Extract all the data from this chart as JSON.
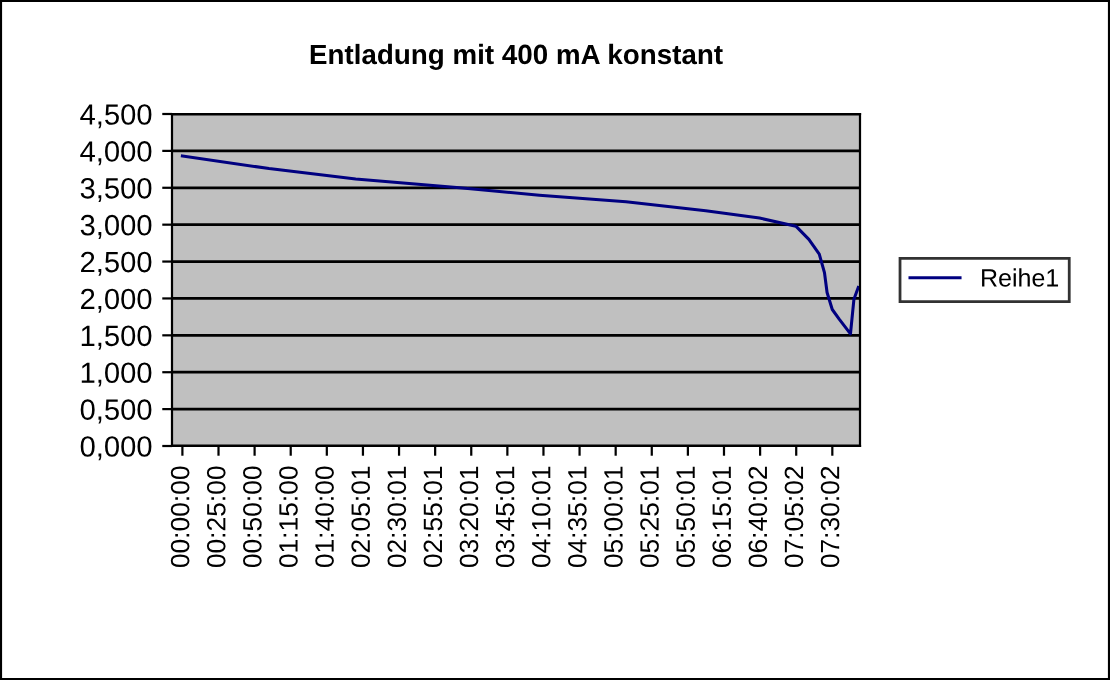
{
  "chart_data": {
    "type": "line",
    "title": "Entladung mit 400 mA konstant",
    "x": [
      0,
      1.0,
      2.0,
      3.2,
      4.12,
      5.12,
      6.04,
      6.66,
      7.08,
      7.23,
      7.35,
      7.41,
      7.44,
      7.5,
      7.58,
      7.71,
      7.75,
      7.8
    ],
    "series": [
      {
        "name": "Reihe1",
        "color": "#000080",
        "values": [
          3.93,
          3.76,
          3.62,
          3.5,
          3.4,
          3.31,
          3.19,
          3.09,
          2.98,
          2.8,
          2.6,
          2.35,
          2.08,
          1.85,
          1.72,
          1.52,
          1.99,
          2.15
        ]
      }
    ],
    "xlim": [
      -0.12,
      7.82
    ],
    "xticks": [
      {
        "value": 0,
        "label": "00:00:00"
      },
      {
        "value": 0.4167,
        "label": "00:25:00"
      },
      {
        "value": 0.8333,
        "label": "00:50:00"
      },
      {
        "value": 1.25,
        "label": "01:15:00"
      },
      {
        "value": 1.6667,
        "label": "01:40:00"
      },
      {
        "value": 2.0836,
        "label": "02:05:01"
      },
      {
        "value": 2.5003,
        "label": "02:30:01"
      },
      {
        "value": 2.9169,
        "label": "02:55:01"
      },
      {
        "value": 3.3336,
        "label": "03:20:01"
      },
      {
        "value": 3.7503,
        "label": "03:45:01"
      },
      {
        "value": 4.1669,
        "label": "04:10:01"
      },
      {
        "value": 4.5836,
        "label": "04:35:01"
      },
      {
        "value": 5.0003,
        "label": "05:00:01"
      },
      {
        "value": 5.4169,
        "label": "05:25:01"
      },
      {
        "value": 5.8336,
        "label": "05:50:01"
      },
      {
        "value": 6.2503,
        "label": "06:15:01"
      },
      {
        "value": 6.6672,
        "label": "06:40:02"
      },
      {
        "value": 7.0839,
        "label": "07:05:02"
      },
      {
        "value": 7.5006,
        "label": "07:30:02"
      }
    ],
    "ylim": [
      0,
      4.5
    ],
    "yticks": [
      {
        "value": 0,
        "label": "0,000"
      },
      {
        "value": 0.5,
        "label": "0,500"
      },
      {
        "value": 1,
        "label": "1,000"
      },
      {
        "value": 1.5,
        "label": "1,500"
      },
      {
        "value": 2,
        "label": "2,000"
      },
      {
        "value": 2.5,
        "label": "2,500"
      },
      {
        "value": 3,
        "label": "3,000"
      },
      {
        "value": 3.5,
        "label": "3,500"
      },
      {
        "value": 4,
        "label": "4,000"
      },
      {
        "value": 4.5,
        "label": "4,500"
      }
    ],
    "grid": "y",
    "legend": "right",
    "marker": "none",
    "line_style": "solid"
  }
}
